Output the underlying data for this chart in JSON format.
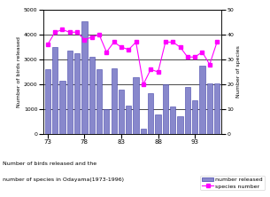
{
  "years": [
    73,
    74,
    75,
    76,
    77,
    78,
    79,
    80,
    81,
    82,
    83,
    84,
    85,
    86,
    87,
    88,
    89,
    90,
    91,
    92,
    93,
    94,
    95,
    96
  ],
  "birds_released": [
    2600,
    3500,
    2150,
    3350,
    3250,
    4550,
    3100,
    2600,
    1000,
    2650,
    1800,
    1150,
    2300,
    200,
    1650,
    800,
    2000,
    1100,
    700,
    1900,
    1350,
    2750,
    2050,
    2050
  ],
  "species_number": [
    36,
    41,
    42,
    41,
    41,
    38,
    39,
    40,
    33,
    37,
    35,
    34,
    37,
    20,
    26,
    25,
    37,
    37,
    35,
    31,
    31,
    33,
    28,
    37
  ],
  "bar_color": "#8888cc",
  "bar_edge_color": "#4444aa",
  "line_color": "#ff00ff",
  "marker_color": "#ff00ff",
  "left_ylabel": "Number of birds released",
  "right_ylabel": "Number of species",
  "caption_line1": "Number of birds released and the",
  "caption_line2": "number of species in Odayama(1973-1996)",
  "ylim_left": [
    0,
    5000
  ],
  "ylim_right": [
    0,
    50
  ],
  "yticks_left": [
    0,
    1000,
    2000,
    3000,
    4000,
    5000
  ],
  "yticks_right": [
    0,
    10,
    20,
    30,
    40,
    50
  ],
  "xtick_positions": [
    73,
    78,
    83,
    88,
    93
  ],
  "legend_labels": [
    "number released",
    "species number"
  ],
  "bg_color": "#ffffff"
}
